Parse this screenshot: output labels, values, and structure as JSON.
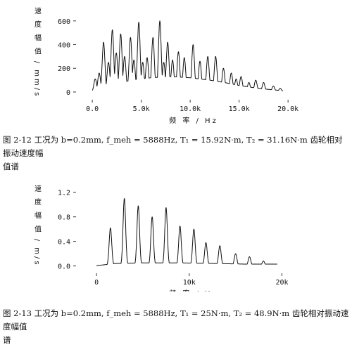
{
  "figure1": {
    "caption_line1": "图 2-12 工况为 b=0.2mm, f_meh = 5888Hz, T₁ = 15.92N·m, T₂ = 31.16N·m 齿轮相对振动速度幅",
    "caption_line2": "值谱"
  },
  "figure2": {
    "caption_line1": "图 2-13 工况为 b=0.2mm, f_meh = 5888Hz, T₁ = 25N·m, T₂ = 48.9N·m 齿轮相对振动速度幅值",
    "caption_line2": "谱"
  },
  "chart_data": [
    {
      "type": "line",
      "title": "",
      "xlabel": "频 率 / Hz",
      "ylabel": "速 度 幅 值 / mm/s",
      "xticks": [
        "0.0",
        "5.0k",
        "10.0k",
        "15.0k",
        "20.0k"
      ],
      "yticks": [
        "0",
        "200",
        "400",
        "600"
      ],
      "xlim": [
        -800,
        21500
      ],
      "ylim": [
        -30,
        670
      ],
      "grid": false,
      "peaks": [
        [
          300,
          110
        ],
        [
          700,
          160
        ],
        [
          1150,
          420
        ],
        [
          1650,
          250
        ],
        [
          2050,
          525
        ],
        [
          2450,
          330
        ],
        [
          2900,
          490
        ],
        [
          3300,
          300
        ],
        [
          3900,
          460
        ],
        [
          4250,
          270
        ],
        [
          4750,
          590
        ],
        [
          5150,
          250
        ],
        [
          5600,
          290
        ],
        [
          6200,
          460
        ],
        [
          6900,
          600
        ],
        [
          7300,
          250
        ],
        [
          7700,
          420
        ],
        [
          8200,
          270
        ],
        [
          8800,
          340
        ],
        [
          9400,
          290
        ],
        [
          10300,
          400
        ],
        [
          11000,
          260
        ],
        [
          11800,
          300
        ],
        [
          12600,
          300
        ],
        [
          13400,
          200
        ],
        [
          14200,
          160
        ],
        [
          14700,
          110
        ],
        [
          15200,
          130
        ],
        [
          16000,
          80
        ],
        [
          16700,
          100
        ],
        [
          17500,
          80
        ],
        [
          18500,
          50
        ],
        [
          19200,
          30
        ]
      ],
      "floor": [
        [
          0,
          15
        ],
        [
          2000,
          60
        ],
        [
          4000,
          100
        ],
        [
          6000,
          120
        ],
        [
          8000,
          130
        ],
        [
          10000,
          120
        ],
        [
          12000,
          100
        ],
        [
          13500,
          80
        ],
        [
          15000,
          55
        ],
        [
          17000,
          30
        ],
        [
          19500,
          10
        ]
      ]
    },
    {
      "type": "line",
      "title": "",
      "xlabel": "频 率 / Hz",
      "ylabel": "速 度 幅 值 / m/s",
      "xticks": [
        "0",
        "10k",
        "20k"
      ],
      "yticks": [
        "0.0",
        "0.4",
        "0.8",
        "1.2"
      ],
      "xlim": [
        -1300,
        23000
      ],
      "ylim": [
        -0.05,
        1.3
      ],
      "grid": false,
      "peaks": [
        [
          1500,
          0.62
        ],
        [
          3000,
          1.1
        ],
        [
          4500,
          0.98
        ],
        [
          6000,
          0.8
        ],
        [
          7500,
          0.95
        ],
        [
          9000,
          0.65
        ],
        [
          10500,
          0.6
        ],
        [
          11800,
          0.38
        ],
        [
          13300,
          0.33
        ],
        [
          15000,
          0.2
        ],
        [
          16500,
          0.15
        ],
        [
          18000,
          0.08
        ]
      ],
      "floor": [
        [
          0,
          0.005
        ],
        [
          2000,
          0.04
        ],
        [
          5000,
          0.05
        ],
        [
          9000,
          0.05
        ],
        [
          13000,
          0.04
        ],
        [
          16000,
          0.03
        ],
        [
          19500,
          0.03
        ]
      ]
    }
  ]
}
